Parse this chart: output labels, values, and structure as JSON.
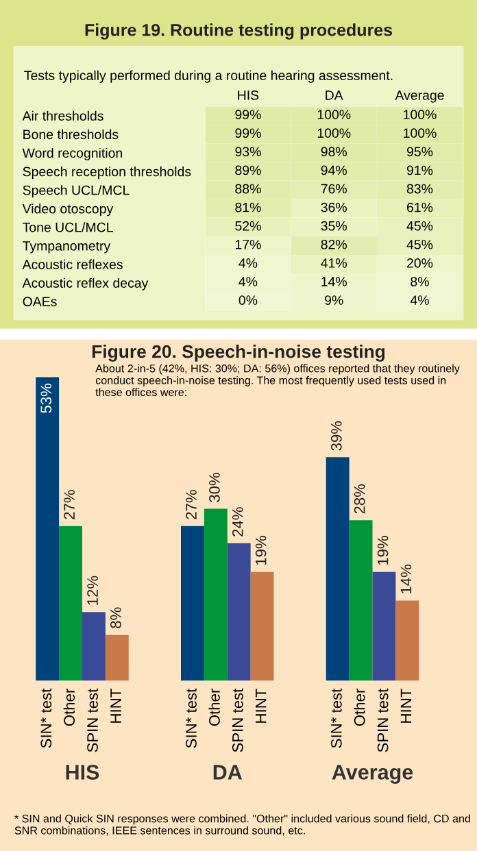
{
  "chart_data": [
    {
      "type": "heatmap",
      "title": "Figure 19. Routine testing procedures",
      "subtitle": "Tests typically performed during a routine hearing assessment.",
      "categories": [
        "HIS",
        "DA",
        "Average"
      ],
      "y_categories": [
        "Air thresholds",
        "Bone thresholds",
        "Word recognition",
        "Speech reception thresholds",
        "Speech UCL/MCL",
        "Video otoscopy",
        "Tone UCL/MCL",
        "Tympanometry",
        "Acoustic reflexes",
        "Acoustic reflex decay",
        "OAEs"
      ],
      "cells": [
        [
          99,
          100,
          100
        ],
        [
          99,
          100,
          100
        ],
        [
          93,
          98,
          95
        ],
        [
          89,
          94,
          91
        ],
        [
          88,
          76,
          83
        ],
        [
          81,
          36,
          61
        ],
        [
          52,
          35,
          45
        ],
        [
          17,
          82,
          45
        ],
        [
          4,
          41,
          20
        ],
        [
          4,
          14,
          8
        ],
        [
          0,
          9,
          4
        ]
      ],
      "cell_labels": [
        [
          "99%",
          "100%",
          "100%"
        ],
        [
          "99%",
          "100%",
          "100%"
        ],
        [
          "93%",
          "98%",
          "95%"
        ],
        [
          "89%",
          "94%",
          "91%"
        ],
        [
          "88%",
          "76%",
          "83%"
        ],
        [
          "81%",
          "36%",
          "61%"
        ],
        [
          "52%",
          "35%",
          "45%"
        ],
        [
          "17%",
          "82%",
          "45%"
        ],
        [
          "4%",
          "41%",
          "20%"
        ],
        [
          "4%",
          "14%",
          "8%"
        ],
        [
          "0%",
          "9%",
          "4%"
        ]
      ]
    },
    {
      "type": "bar",
      "title": "Figure 20. Speech-in-noise testing",
      "subtitle": "About 2-in-5 (42%, HIS: 30%; DA: 56%) offices reported that they routinely conduct speech-in-noise testing. The most frequently used tests used in these offices were:",
      "categories": [
        "HIS",
        "DA",
        "Average"
      ],
      "series": [
        {
          "name": "SIN* test",
          "color": "#00427a",
          "values": [
            53,
            27,
            39
          ],
          "value_labels": [
            "53%",
            "27%",
            "39%"
          ]
        },
        {
          "name": "Other",
          "color": "#009639",
          "values": [
            27,
            30,
            28
          ],
          "value_labels": [
            "27%",
            "30%",
            "28%"
          ]
        },
        {
          "name": "SPIN test",
          "color": "#3a4a96",
          "values": [
            12,
            24,
            19
          ],
          "value_labels": [
            "12%",
            "24%",
            "19%"
          ]
        },
        {
          "name": "HINT",
          "color": "#c87a4a",
          "values": [
            8,
            19,
            14
          ],
          "value_labels": [
            "8%",
            "19%",
            "14%"
          ]
        }
      ],
      "annotations": [
        "* SIN and Quick SIN responses were combined. \"Other\" included various sound field, CD and SNR combinations, IEEE sentences in surround sound, etc."
      ]
    }
  ]
}
